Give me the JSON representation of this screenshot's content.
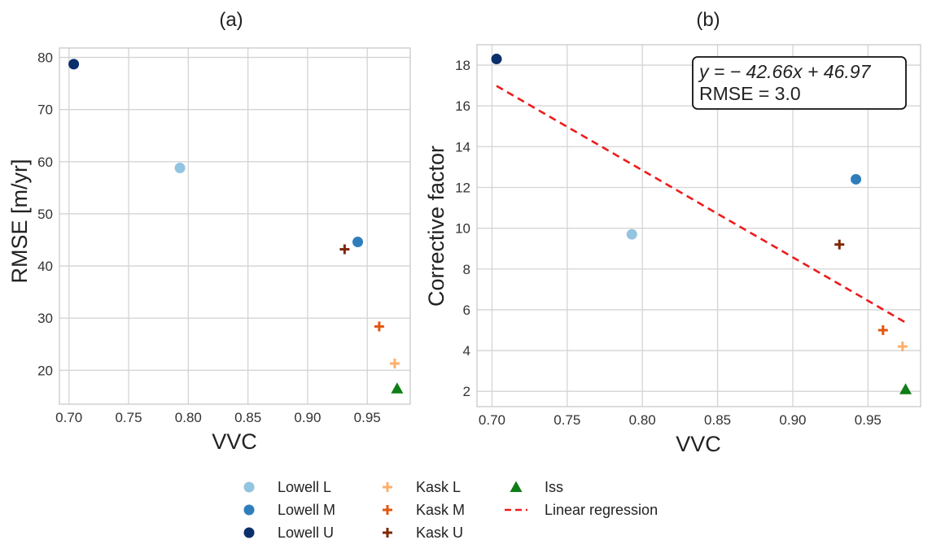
{
  "colors": {
    "lowell_l": "#93c4e0",
    "lowell_m": "#2f7ebc",
    "lowell_u": "#0b2f6b",
    "kask_l": "#fdaf6b",
    "kask_m": "#e2570f",
    "kask_u": "#7f2704",
    "iss": "#0f7d18",
    "regression": "#ee1b1b"
  },
  "chart_data": [
    {
      "type": "scatter",
      "title": "(a)",
      "xlabel": "VVC",
      "ylabel": "RMSE [m/yr]",
      "xlim": [
        0.692,
        0.986
      ],
      "ylim": [
        13.5,
        81.8
      ],
      "xticks": [
        "0.70",
        "0.75",
        "0.80",
        "0.85",
        "0.90",
        "0.95"
      ],
      "xtick_values": [
        0.7,
        0.75,
        0.8,
        0.85,
        0.9,
        0.95
      ],
      "yticks": [
        "20",
        "30",
        "40",
        "50",
        "60",
        "70",
        "80"
      ],
      "ytick_values": [
        20,
        30,
        40,
        50,
        60,
        70,
        80
      ],
      "series": [
        {
          "name": "Lowell L",
          "marker": "circle",
          "color_key": "lowell_l",
          "x": 0.793,
          "y": 58.8
        },
        {
          "name": "Lowell M",
          "marker": "circle",
          "color_key": "lowell_m",
          "x": 0.942,
          "y": 44.6
        },
        {
          "name": "Lowell U",
          "marker": "circle",
          "color_key": "lowell_u",
          "x": 0.704,
          "y": 78.7
        },
        {
          "name": "Kask L",
          "marker": "plus",
          "color_key": "kask_l",
          "x": 0.973,
          "y": 21.3
        },
        {
          "name": "Kask M",
          "marker": "plus",
          "color_key": "kask_m",
          "x": 0.96,
          "y": 28.4
        },
        {
          "name": "Kask U",
          "marker": "plus",
          "color_key": "kask_u",
          "x": 0.931,
          "y": 43.2
        },
        {
          "name": "Iss",
          "marker": "triangle",
          "color_key": "iss",
          "x": 0.975,
          "y": 16.5
        }
      ]
    },
    {
      "type": "scatter",
      "title": "(b)",
      "xlabel": "VVC",
      "ylabel": "Corrective factor",
      "xlim": [
        0.69,
        0.985
      ],
      "ylim": [
        1.25,
        19.0
      ],
      "xticks": [
        "0.70",
        "0.75",
        "0.80",
        "0.85",
        "0.90",
        "0.95"
      ],
      "xtick_values": [
        0.7,
        0.75,
        0.8,
        0.85,
        0.9,
        0.95
      ],
      "yticks": [
        "2",
        "4",
        "6",
        "8",
        "10",
        "12",
        "14",
        "16",
        "18"
      ],
      "ytick_values": [
        2,
        4,
        6,
        8,
        10,
        12,
        14,
        16,
        18
      ],
      "series": [
        {
          "name": "Lowell L",
          "marker": "circle",
          "color_key": "lowell_l",
          "x": 0.793,
          "y": 9.7
        },
        {
          "name": "Lowell M",
          "marker": "circle",
          "color_key": "lowell_m",
          "x": 0.942,
          "y": 12.4
        },
        {
          "name": "Lowell U",
          "marker": "circle",
          "color_key": "lowell_u",
          "x": 0.703,
          "y": 18.3
        },
        {
          "name": "Kask L",
          "marker": "plus",
          "color_key": "kask_l",
          "x": 0.973,
          "y": 4.2
        },
        {
          "name": "Kask M",
          "marker": "plus",
          "color_key": "kask_m",
          "x": 0.96,
          "y": 5.0
        },
        {
          "name": "Kask U",
          "marker": "plus",
          "color_key": "kask_u",
          "x": 0.931,
          "y": 9.2
        },
        {
          "name": "Iss",
          "marker": "triangle",
          "color_key": "iss",
          "x": 0.975,
          "y": 2.1
        }
      ],
      "regression": {
        "name": "Linear regression",
        "slope": -42.66,
        "intercept": 46.97,
        "x_start": 0.703,
        "x_end": 0.975
      },
      "annotation": {
        "equation": "y = − 42.66x + 46.97",
        "rmse": "RMSE = 3.0"
      }
    }
  ],
  "legend": {
    "items": [
      {
        "label": "Lowell L",
        "marker": "circle",
        "color_key": "lowell_l"
      },
      {
        "label": "Lowell M",
        "marker": "circle",
        "color_key": "lowell_m"
      },
      {
        "label": "Lowell U",
        "marker": "circle",
        "color_key": "lowell_u"
      },
      {
        "label": "Kask L",
        "marker": "plus",
        "color_key": "kask_l"
      },
      {
        "label": "Kask M",
        "marker": "plus",
        "color_key": "kask_m"
      },
      {
        "label": "Kask U",
        "marker": "plus",
        "color_key": "kask_u"
      },
      {
        "label": "Iss",
        "marker": "triangle",
        "color_key": "iss"
      },
      {
        "label": "Linear regression",
        "marker": "dashed-line",
        "color_key": "regression"
      }
    ]
  }
}
